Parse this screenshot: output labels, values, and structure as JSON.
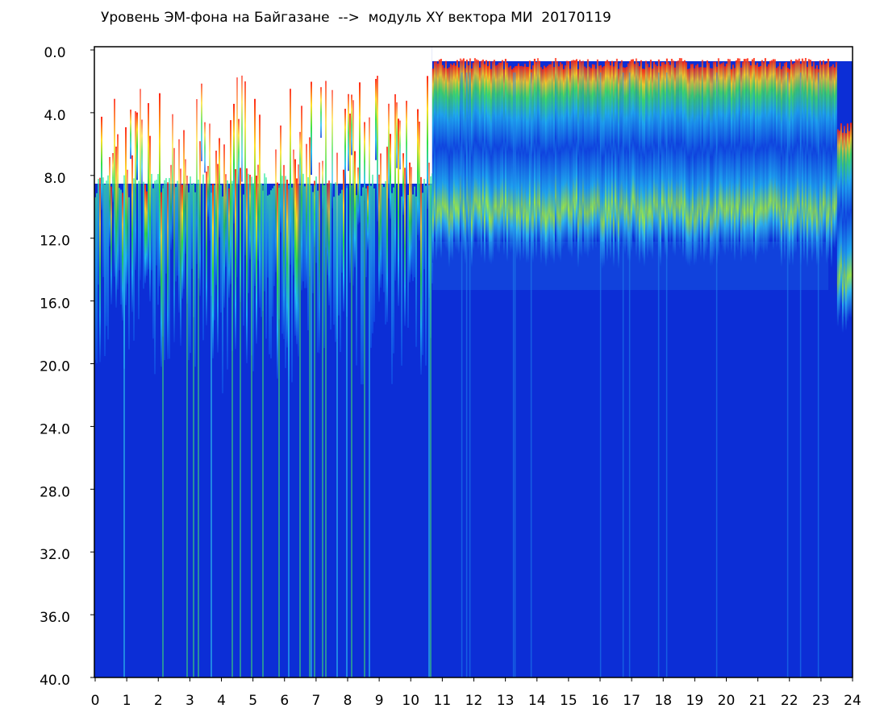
{
  "chart_data": {
    "type": "spectrogram",
    "title": "Уровень ЭМ-фона на Байгазане  -->  модуль XY вектора МИ  20170119",
    "xlim": [
      0,
      24
    ],
    "xticks": [
      0,
      1,
      2,
      3,
      4,
      5,
      6,
      7,
      8,
      9,
      10,
      11,
      12,
      13,
      14,
      15,
      16,
      17,
      18,
      19,
      20,
      21,
      22,
      23,
      24
    ],
    "ylim": [
      0,
      40
    ],
    "y_inverted": true,
    "yticks": [
      {
        "value": 0,
        "label": "0.0"
      },
      {
        "value": 4,
        "label": "4.0"
      },
      {
        "value": 8,
        "label": "8.0"
      },
      {
        "value": 12,
        "label": "12.0"
      },
      {
        "value": 16,
        "label": "16.0"
      },
      {
        "value": 20,
        "label": "20.0"
      },
      {
        "value": 24,
        "label": "24.0"
      },
      {
        "value": 28,
        "label": "28.0"
      },
      {
        "value": 32,
        "label": "32.0"
      },
      {
        "value": 36,
        "label": "36.0"
      },
      {
        "value": 40,
        "label": "40.0"
      }
    ],
    "grid": false
  }
}
